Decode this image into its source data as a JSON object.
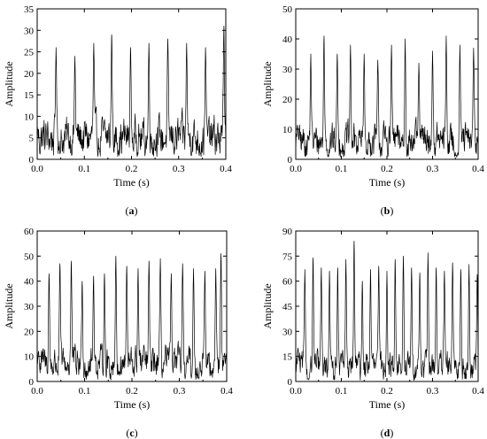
{
  "chart_data": [
    {
      "panel": "a",
      "type": "line",
      "xlabel": "Time (s)",
      "ylabel": "Amplitude",
      "xlim": [
        0,
        0.4
      ],
      "ylim": [
        0,
        35
      ],
      "xticks": [
        "0.0",
        "0.1",
        "0.2",
        "0.3",
        "0.4"
      ],
      "yticks": [
        "0",
        "5",
        "10",
        "15",
        "20",
        "25",
        "30",
        "35"
      ],
      "xtick_values": [
        0,
        0.1,
        0.2,
        0.3,
        0.4
      ],
      "ytick_values": [
        0,
        5,
        10,
        15,
        20,
        25,
        30,
        35
      ],
      "baseline": 5,
      "peaks": [
        {
          "t": 0.0,
          "v": 8
        },
        {
          "t": 0.04,
          "v": 26
        },
        {
          "t": 0.08,
          "v": 24
        },
        {
          "t": 0.12,
          "v": 27
        },
        {
          "t": 0.158,
          "v": 29
        },
        {
          "t": 0.198,
          "v": 26
        },
        {
          "t": 0.237,
          "v": 27
        },
        {
          "t": 0.277,
          "v": 28
        },
        {
          "t": 0.317,
          "v": 27
        },
        {
          "t": 0.357,
          "v": 26
        },
        {
          "t": 0.396,
          "v": 31
        }
      ],
      "label": "(a)"
    },
    {
      "panel": "b",
      "type": "line",
      "xlabel": "Time (s)",
      "ylabel": "Amplitude",
      "xlim": [
        0,
        0.4
      ],
      "ylim": [
        0,
        50
      ],
      "xticks": [
        "0.0",
        "0.1",
        "0.2",
        "0.3",
        "0.4"
      ],
      "yticks": [
        "0",
        "10",
        "20",
        "30",
        "40",
        "50"
      ],
      "xtick_values": [
        0,
        0.1,
        0.2,
        0.3,
        0.4
      ],
      "ytick_values": [
        0,
        10,
        20,
        30,
        40,
        50
      ],
      "baseline": 6,
      "peaks": [
        {
          "t": 0.005,
          "v": 10
        },
        {
          "t": 0.033,
          "v": 35
        },
        {
          "t": 0.062,
          "v": 41
        },
        {
          "t": 0.091,
          "v": 35
        },
        {
          "t": 0.12,
          "v": 38
        },
        {
          "t": 0.15,
          "v": 35
        },
        {
          "t": 0.18,
          "v": 33
        },
        {
          "t": 0.21,
          "v": 38
        },
        {
          "t": 0.24,
          "v": 40
        },
        {
          "t": 0.27,
          "v": 32
        },
        {
          "t": 0.3,
          "v": 36
        },
        {
          "t": 0.33,
          "v": 41
        },
        {
          "t": 0.36,
          "v": 38
        },
        {
          "t": 0.39,
          "v": 37
        }
      ],
      "label": "(b)"
    },
    {
      "panel": "c",
      "type": "line",
      "xlabel": "Time (s)",
      "ylabel": "Amplitude",
      "xlim": [
        0,
        0.4
      ],
      "ylim": [
        0,
        60
      ],
      "xticks": [
        "0.0",
        "0.1",
        "0.2",
        "0.3",
        "0.4"
      ],
      "yticks": [
        "0",
        "10",
        "20",
        "30",
        "40",
        "50",
        "60"
      ],
      "xtick_values": [
        0,
        0.1,
        0.2,
        0.3,
        0.4
      ],
      "ytick_values": [
        0,
        10,
        20,
        30,
        40,
        50,
        60
      ],
      "baseline": 7,
      "peaks": [
        {
          "t": 0.003,
          "v": 12
        },
        {
          "t": 0.025,
          "v": 43
        },
        {
          "t": 0.048,
          "v": 47
        },
        {
          "t": 0.072,
          "v": 48
        },
        {
          "t": 0.095,
          "v": 40
        },
        {
          "t": 0.119,
          "v": 42
        },
        {
          "t": 0.142,
          "v": 43
        },
        {
          "t": 0.166,
          "v": 50
        },
        {
          "t": 0.189,
          "v": 46
        },
        {
          "t": 0.213,
          "v": 45
        },
        {
          "t": 0.236,
          "v": 48
        },
        {
          "t": 0.26,
          "v": 49
        },
        {
          "t": 0.283,
          "v": 43
        },
        {
          "t": 0.307,
          "v": 47
        },
        {
          "t": 0.33,
          "v": 45
        },
        {
          "t": 0.354,
          "v": 44
        },
        {
          "t": 0.377,
          "v": 45
        },
        {
          "t": 0.388,
          "v": 51
        }
      ],
      "label": "(c)"
    },
    {
      "panel": "d",
      "type": "line",
      "xlabel": "Time (s)",
      "ylabel": "Amplitude",
      "xlim": [
        0,
        0.4
      ],
      "ylim": [
        0,
        90
      ],
      "xticks": [
        "0.0",
        "0.1",
        "0.2",
        "0.3",
        "0.4"
      ],
      "yticks": [
        "0",
        "15",
        "30",
        "45",
        "60",
        "75",
        "90"
      ],
      "xtick_values": [
        0,
        0.1,
        0.2,
        0.3,
        0.4
      ],
      "ytick_values": [
        0,
        15,
        30,
        45,
        60,
        75,
        90
      ],
      "baseline": 9,
      "peaks": [
        {
          "t": 0.005,
          "v": 20
        },
        {
          "t": 0.02,
          "v": 67
        },
        {
          "t": 0.038,
          "v": 74
        },
        {
          "t": 0.056,
          "v": 68
        },
        {
          "t": 0.074,
          "v": 66
        },
        {
          "t": 0.092,
          "v": 68
        },
        {
          "t": 0.11,
          "v": 73
        },
        {
          "t": 0.128,
          "v": 84
        },
        {
          "t": 0.146,
          "v": 60
        },
        {
          "t": 0.164,
          "v": 67
        },
        {
          "t": 0.182,
          "v": 69
        },
        {
          "t": 0.2,
          "v": 66
        },
        {
          "t": 0.218,
          "v": 73
        },
        {
          "t": 0.236,
          "v": 75
        },
        {
          "t": 0.254,
          "v": 68
        },
        {
          "t": 0.272,
          "v": 65
        },
        {
          "t": 0.29,
          "v": 77
        },
        {
          "t": 0.308,
          "v": 68
        },
        {
          "t": 0.326,
          "v": 66
        },
        {
          "t": 0.344,
          "v": 71
        },
        {
          "t": 0.362,
          "v": 67
        },
        {
          "t": 0.38,
          "v": 70
        },
        {
          "t": 0.398,
          "v": 64
        }
      ],
      "label": "(d)"
    }
  ]
}
